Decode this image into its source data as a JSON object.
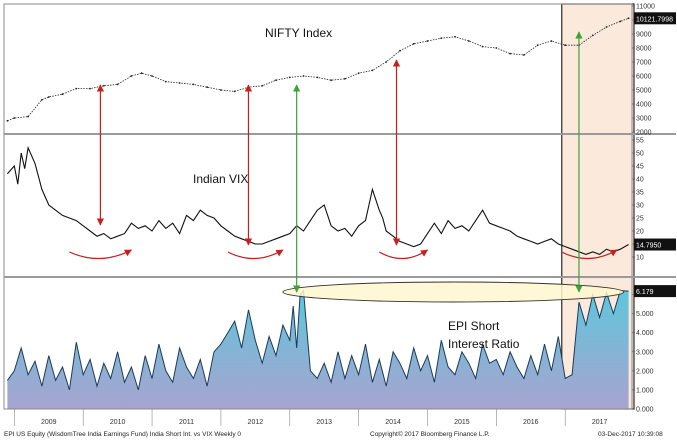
{
  "colors": {
    "panel_border": "#888888",
    "divider": "#9a9a9a",
    "highlight_fill": "#fbe9dc",
    "highlight_border": "#2a2a2a",
    "nifty_line": "#222222",
    "vix_line": "#111111",
    "epi_fill_top": "#5fc6db",
    "epi_fill_bottom": "#a8a3cf",
    "epi_line": "#1c3a5a",
    "red_arrow": "#c81e1e",
    "green_arrow": "#3aa33a",
    "ellipse_fill": "#fff7cf",
    "ellipse_stroke": "#333333"
  },
  "chart_data": [
    {
      "type": "line",
      "title": "NIFTY Index",
      "ylim": [
        2000,
        11000
      ],
      "yticks": [
        "11000",
        "10000",
        "9000",
        "8000",
        "7000",
        "6000",
        "5000",
        "4000",
        "3000",
        "2000"
      ],
      "last_value": "10121.7998",
      "series": [
        {
          "x": [
            2008.9,
            2009.0,
            2009.2,
            2009.4,
            2009.5,
            2009.7,
            2009.9,
            2010.1,
            2010.3,
            2010.5,
            2010.7,
            2010.85,
            2011.0,
            2011.2,
            2011.4,
            2011.6,
            2011.8,
            2012.0,
            2012.2,
            2012.4,
            2012.6,
            2012.8,
            2013.0,
            2013.2,
            2013.4,
            2013.6,
            2013.8,
            2014.0,
            2014.2,
            2014.4,
            2014.6,
            2014.8,
            2015.0,
            2015.2,
            2015.4,
            2015.6,
            2015.8,
            2016.0,
            2016.2,
            2016.4,
            2016.6,
            2016.8,
            2017.0,
            2017.2,
            2017.4,
            2017.6,
            2017.8,
            2017.92
          ],
          "values": [
            2800,
            3000,
            3100,
            4300,
            4500,
            4700,
            5100,
            5100,
            5300,
            5400,
            6000,
            6200,
            6000,
            5600,
            5500,
            5400,
            5200,
            5000,
            4900,
            5200,
            5300,
            5700,
            5900,
            6000,
            5900,
            5700,
            5800,
            6200,
            6400,
            7000,
            7800,
            8300,
            8500,
            8700,
            8800,
            8500,
            8100,
            8000,
            7600,
            7500,
            8200,
            8500,
            8200,
            8200,
            8900,
            9500,
            9900,
            10121.8
          ]
        }
      ]
    },
    {
      "type": "line",
      "title": "Indian VIX",
      "ylim": [
        5,
        55
      ],
      "yticks": [
        "55",
        "50",
        "45",
        "40",
        "35",
        "30",
        "25",
        "20",
        "15",
        "10"
      ],
      "last_value": "14.7950",
      "series": [
        {
          "x": [
            2008.9,
            2009.0,
            2009.05,
            2009.1,
            2009.15,
            2009.2,
            2009.3,
            2009.4,
            2009.5,
            2009.6,
            2009.7,
            2009.8,
            2009.9,
            2010.0,
            2010.1,
            2010.2,
            2010.3,
            2010.4,
            2010.5,
            2010.6,
            2010.7,
            2010.8,
            2010.9,
            2011.0,
            2011.1,
            2011.2,
            2011.3,
            2011.4,
            2011.5,
            2011.6,
            2011.7,
            2011.8,
            2011.9,
            2012.0,
            2012.1,
            2012.2,
            2012.3,
            2012.4,
            2012.5,
            2012.6,
            2012.7,
            2012.8,
            2012.9,
            2013.0,
            2013.1,
            2013.2,
            2013.3,
            2013.4,
            2013.5,
            2013.6,
            2013.7,
            2013.8,
            2013.9,
            2014.0,
            2014.1,
            2014.2,
            2014.3,
            2014.35,
            2014.4,
            2014.5,
            2014.6,
            2014.7,
            2014.8,
            2014.9,
            2015.0,
            2015.1,
            2015.2,
            2015.3,
            2015.4,
            2015.5,
            2015.6,
            2015.7,
            2015.8,
            2015.9,
            2016.0,
            2016.1,
            2016.2,
            2016.3,
            2016.4,
            2016.5,
            2016.6,
            2016.7,
            2016.8,
            2016.9,
            2017.0,
            2017.1,
            2017.2,
            2017.3,
            2017.4,
            2017.5,
            2017.6,
            2017.7,
            2017.8,
            2017.92
          ],
          "values": [
            42,
            45,
            38,
            50,
            44,
            52,
            46,
            36,
            30,
            28,
            26,
            25,
            24,
            22,
            20,
            18,
            19,
            17,
            18,
            19,
            23,
            21,
            22,
            20,
            24,
            21,
            23,
            19,
            26,
            24,
            28,
            26,
            25,
            22,
            20,
            18,
            17,
            16,
            15,
            15,
            16,
            17,
            18,
            19,
            22,
            20,
            24,
            28,
            30,
            22,
            20,
            21,
            18,
            22,
            24,
            36,
            28,
            25,
            20,
            18,
            16,
            15,
            14,
            15,
            19,
            23,
            19,
            24,
            21,
            22,
            20,
            24,
            28,
            23,
            22,
            21,
            20,
            18,
            17,
            16,
            15,
            16,
            17,
            15,
            14,
            13,
            12,
            11,
            12,
            11,
            13,
            12,
            13,
            14.8
          ]
        }
      ]
    },
    {
      "type": "area",
      "title": "EPI Short\nInterest Ratio",
      "ylim": [
        0,
        6.5
      ],
      "yticks": [
        "6.000",
        "5.000",
        "4.000",
        "3.000",
        "2.000",
        "1.000",
        "0.000"
      ],
      "last_value": "6.179",
      "series": [
        {
          "x": [
            2008.9,
            2009.0,
            2009.1,
            2009.2,
            2009.3,
            2009.4,
            2009.5,
            2009.6,
            2009.7,
            2009.8,
            2009.9,
            2010.0,
            2010.1,
            2010.2,
            2010.3,
            2010.4,
            2010.5,
            2010.6,
            2010.7,
            2010.8,
            2010.9,
            2011.0,
            2011.1,
            2011.2,
            2011.3,
            2011.4,
            2011.5,
            2011.6,
            2011.7,
            2011.8,
            2011.9,
            2012.0,
            2012.1,
            2012.2,
            2012.3,
            2012.4,
            2012.5,
            2012.6,
            2012.7,
            2012.8,
            2012.9,
            2013.0,
            2013.05,
            2013.1,
            2013.15,
            2013.2,
            2013.3,
            2013.4,
            2013.5,
            2013.6,
            2013.7,
            2013.8,
            2013.9,
            2014.0,
            2014.1,
            2014.2,
            2014.3,
            2014.4,
            2014.5,
            2014.6,
            2014.7,
            2014.8,
            2014.9,
            2015.0,
            2015.1,
            2015.2,
            2015.3,
            2015.4,
            2015.5,
            2015.6,
            2015.7,
            2015.8,
            2015.9,
            2016.0,
            2016.1,
            2016.2,
            2016.3,
            2016.4,
            2016.5,
            2016.6,
            2016.7,
            2016.8,
            2016.9,
            2017.0,
            2017.1,
            2017.2,
            2017.3,
            2017.4,
            2017.5,
            2017.6,
            2017.7,
            2017.8,
            2017.92
          ],
          "values": [
            1.5,
            2.0,
            3.2,
            1.8,
            2.5,
            1.2,
            2.8,
            1.5,
            2.2,
            1.0,
            3.5,
            1.8,
            2.6,
            1.2,
            2.4,
            1.6,
            3.0,
            1.4,
            2.2,
            1.0,
            2.8,
            1.6,
            3.4,
            2.0,
            1.4,
            3.2,
            2.2,
            1.6,
            2.6,
            1.2,
            3.0,
            3.4,
            4.0,
            4.6,
            3.2,
            5.2,
            3.6,
            2.4,
            3.8,
            2.8,
            4.4,
            3.6,
            5.4,
            3.2,
            6.0,
            6.2,
            2.0,
            1.6,
            2.4,
            1.4,
            3.0,
            1.6,
            2.8,
            1.8,
            3.4,
            1.4,
            2.6,
            1.2,
            3.0,
            2.4,
            1.6,
            3.2,
            2.0,
            2.8,
            1.4,
            3.6,
            2.2,
            1.8,
            3.0,
            2.4,
            1.6,
            3.4,
            2.4,
            2.6,
            1.8,
            3.0,
            2.2,
            1.6,
            2.8,
            1.8,
            3.4,
            2.0,
            3.8,
            1.6,
            1.8,
            5.6,
            4.4,
            6.0,
            4.8,
            6.1,
            5.0,
            6.2,
            6.18
          ]
        }
      ]
    }
  ],
  "x_axis": {
    "years": [
      "2009",
      "2010",
      "2011",
      "2012",
      "2013",
      "2014",
      "2015",
      "2016",
      "2017"
    ]
  },
  "footer": {
    "left": "EPI US Equity (WisdomTree India Earnings Fund) India Short Int. vs VIX  Weekly 0",
    "center": "Copyright© 2017 Bloomberg Finance L.P.",
    "right": "03-Dec-2017 10:39:08"
  }
}
